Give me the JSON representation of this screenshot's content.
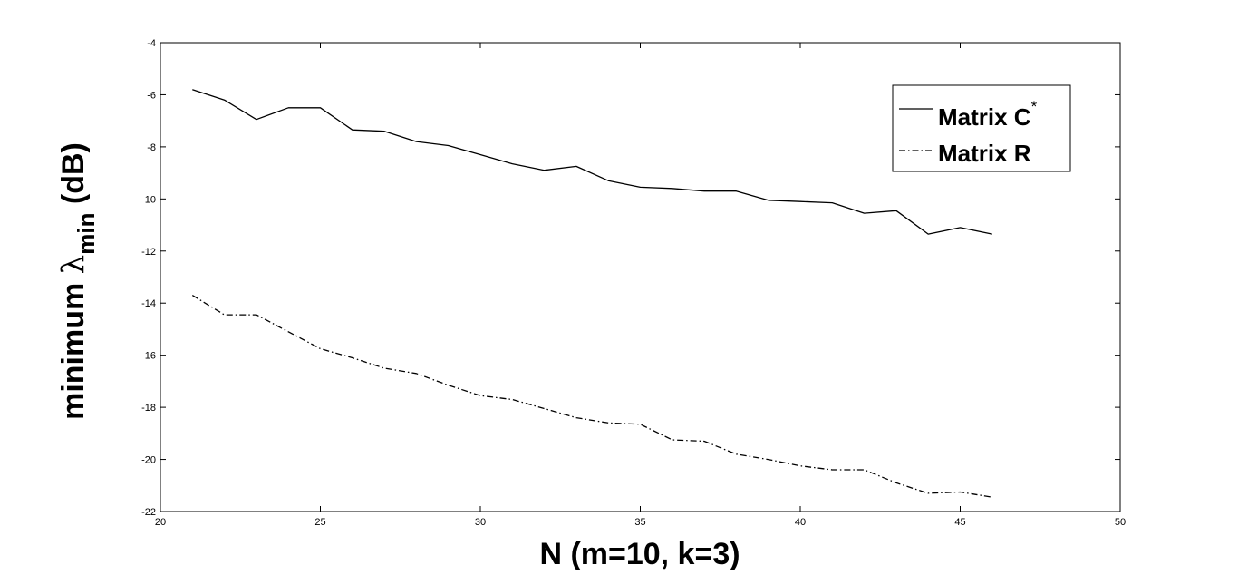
{
  "chart_data": {
    "type": "line",
    "title": "",
    "xlabel": "N (m=10, k=3)",
    "ylabel": {
      "prefix": "minimum ",
      "symbol": "λ",
      "subscript": "min",
      "suffix": " (dB)"
    },
    "xlim": [
      20,
      50
    ],
    "ylim": [
      -22,
      -4
    ],
    "xticks": [
      20,
      25,
      30,
      35,
      40,
      45,
      50
    ],
    "yticks": [
      -22,
      -20,
      -18,
      -16,
      -14,
      -12,
      -10,
      -8,
      -6,
      -4
    ],
    "grid": false,
    "legend_position": "top-right",
    "x": [
      21,
      22,
      23,
      24,
      25,
      26,
      27,
      28,
      29,
      30,
      31,
      32,
      33,
      34,
      35,
      36,
      37,
      38,
      39,
      40,
      41,
      42,
      43,
      44,
      45,
      46
    ],
    "series": [
      {
        "name": "Matrix C",
        "name_superscript": "*",
        "style": "solid",
        "color": "#000000",
        "values": [
          -5.8,
          -6.2,
          -6.95,
          -6.5,
          -6.5,
          -7.35,
          -7.4,
          -7.8,
          -7.95,
          -8.3,
          -8.65,
          -8.9,
          -8.75,
          -9.3,
          -9.55,
          -9.6,
          -9.7,
          -9.7,
          -10.05,
          -10.1,
          -10.15,
          -10.55,
          -10.45,
          -11.35,
          -11.1,
          -11.35
        ]
      },
      {
        "name": "Matrix R",
        "style": "dashdot",
        "color": "#000000",
        "values": [
          -13.7,
          -14.45,
          -14.45,
          -15.1,
          -15.75,
          -16.1,
          -16.5,
          -16.7,
          -17.15,
          -17.55,
          -17.7,
          -18.05,
          -18.4,
          -18.6,
          -18.65,
          -19.25,
          -19.3,
          -19.8,
          -20.0,
          -20.25,
          -20.4,
          -20.4,
          -20.9,
          -21.3,
          -21.25,
          -21.45
        ]
      }
    ]
  }
}
